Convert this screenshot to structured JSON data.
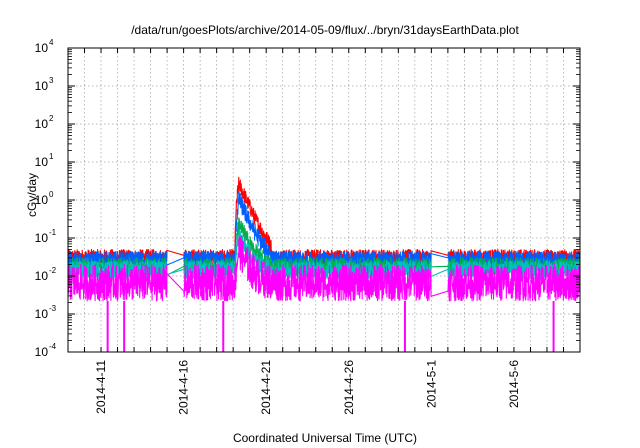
{
  "chart_data": {
    "type": "line",
    "title": "/data/run/goesPlots/archive/2014-05-09/flux/../bryn/31daysEarthData.plot",
    "xlabel": "Coordinated Universal Time (UTC)",
    "ylabel": "cGy/day",
    "y_scale": "log",
    "ylim": [
      0.0001,
      10000
    ],
    "y_ticks": [
      {
        "base": "10",
        "exp": "4",
        "value": 10000
      },
      {
        "base": "10",
        "exp": "3",
        "value": 1000
      },
      {
        "base": "10",
        "exp": "2",
        "value": 100
      },
      {
        "base": "10",
        "exp": "1",
        "value": 10
      },
      {
        "base": "10",
        "exp": "0",
        "value": 1
      },
      {
        "base": "10",
        "exp": "-1",
        "value": 0.1
      },
      {
        "base": "10",
        "exp": "-2",
        "value": 0.01
      },
      {
        "base": "10",
        "exp": "-3",
        "value": 0.001
      },
      {
        "base": "10",
        "exp": "-4",
        "value": 0.0001
      }
    ],
    "xlim": [
      "2014-04-09",
      "2014-05-10"
    ],
    "x_ticks": [
      "2014-4-11",
      "2014-4-16",
      "2014-4-21",
      "2014-4-26",
      "2014-5-1",
      "2014-5-6"
    ],
    "grid": true,
    "data_gaps": [
      [
        "2014-04-15",
        "2014-04-16"
      ],
      [
        "2014-05-01",
        "2014-05-02"
      ]
    ],
    "event": {
      "start": "2014-04-19",
      "peak_date": "2014-04-19",
      "decay_end": "2014-04-21"
    },
    "series": [
      {
        "color": "#ff0000",
        "baseline": 0.035,
        "band_low": 0.02,
        "band_high": 0.05,
        "peak": 3.0
      },
      {
        "color": "#0060ff",
        "baseline": 0.03,
        "band_low": 0.015,
        "band_high": 0.045,
        "peak": 1.2
      },
      {
        "color": "#00b050",
        "baseline": 0.018,
        "band_low": 0.01,
        "band_high": 0.03,
        "peak": 0.25
      },
      {
        "color": "#00c0c0",
        "baseline": 0.015,
        "band_low": 0.008,
        "band_high": 0.025,
        "peak": 0.12
      },
      {
        "color": "#ff00ff",
        "baseline": 0.004,
        "band_low": 0.0022,
        "band_high": 0.02,
        "peak": 0.03
      }
    ],
    "dropouts": [
      {
        "date": "2014-04-11",
        "value": 0.0001
      },
      {
        "date": "2014-04-12",
        "value": 0.0001
      },
      {
        "date": "2014-04-18",
        "value": 0.0001
      },
      {
        "date": "2014-04-29",
        "value": 0.0001
      },
      {
        "date": "2014-05-08",
        "value": 0.0001
      }
    ]
  }
}
